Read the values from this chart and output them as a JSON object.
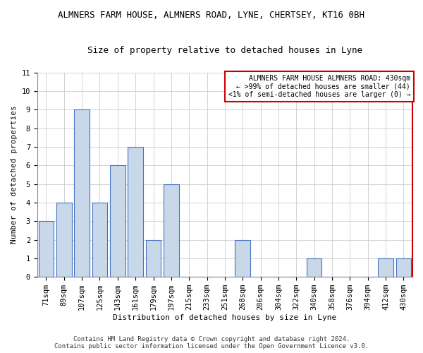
{
  "title": "ALMNERS FARM HOUSE, ALMNERS ROAD, LYNE, CHERTSEY, KT16 0BH",
  "subtitle": "Size of property relative to detached houses in Lyne",
  "xlabel": "Distribution of detached houses by size in Lyne",
  "ylabel": "Number of detached properties",
  "bar_labels": [
    "71sqm",
    "89sqm",
    "107sqm",
    "125sqm",
    "143sqm",
    "161sqm",
    "179sqm",
    "197sqm",
    "215sqm",
    "233sqm",
    "251sqm",
    "268sqm",
    "286sqm",
    "304sqm",
    "322sqm",
    "340sqm",
    "358sqm",
    "376sqm",
    "394sqm",
    "412sqm",
    "430sqm"
  ],
  "bar_values": [
    3,
    4,
    9,
    4,
    6,
    7,
    2,
    5,
    0,
    0,
    0,
    2,
    0,
    0,
    0,
    1,
    0,
    0,
    0,
    1,
    1
  ],
  "bar_color": "#c8d8e8",
  "bar_edge_color": "#4472c4",
  "ylim": [
    0,
    11
  ],
  "yticks": [
    0,
    1,
    2,
    3,
    4,
    5,
    6,
    7,
    8,
    9,
    10,
    11
  ],
  "grid_color": "#cccccc",
  "annotation_box_text": "ALMNERS FARM HOUSE ALMNERS ROAD: 430sqm\n← >99% of detached houses are smaller (44)\n<1% of semi-detached houses are larger (0) →",
  "annotation_box_color": "#ffffff",
  "annotation_box_edge_color": "#cc0000",
  "right_spine_color": "#cc0000",
  "footer_line1": "Contains HM Land Registry data © Crown copyright and database right 2024.",
  "footer_line2": "Contains public sector information licensed under the Open Government Licence v3.0.",
  "title_fontsize": 9,
  "subtitle_fontsize": 9,
  "axis_label_fontsize": 8,
  "tick_fontsize": 7.5,
  "annotation_fontsize": 7,
  "footer_fontsize": 6.5
}
